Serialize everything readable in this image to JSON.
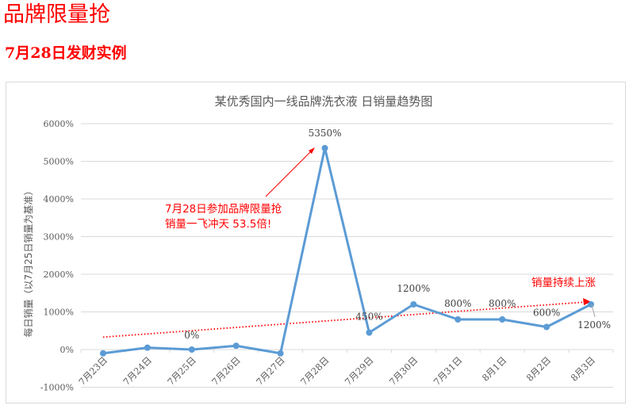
{
  "page": {
    "headline": "品牌限量抢",
    "subheadline": "7月28日发财实例"
  },
  "colors": {
    "headline": "#ff0000",
    "series_line": "#5b9bd5",
    "trend_line": "#ff0000",
    "gridline": "#d9d9d9",
    "text": "#595959"
  },
  "chart_data": {
    "type": "line",
    "title": "某优秀国内一线品牌洗衣液 日销量趋势图",
    "xlabel": "",
    "ylabel": "每日销量（以7月25日销量为基准）",
    "ylim": [
      -1000,
      6000
    ],
    "yticks": [
      -1000,
      0,
      1000,
      2000,
      3000,
      4000,
      5000,
      6000
    ],
    "ytick_labels": [
      "-1000%",
      "0%",
      "1000%",
      "2000%",
      "3000%",
      "4000%",
      "5000%",
      "6000%"
    ],
    "grid": true,
    "legend": "none",
    "categories": [
      "7月23日",
      "7月24日",
      "7月25日",
      "7月26日",
      "7月27日",
      "7月28日",
      "7月29日",
      "7月30日",
      "7月31日",
      "8月1日",
      "8月2日",
      "8月3日"
    ],
    "series": [
      {
        "name": "日销量",
        "values": [
          -100,
          50,
          0,
          100,
          -100,
          5350,
          450,
          1200,
          800,
          800,
          600,
          1200
        ]
      }
    ],
    "data_labels": [
      {
        "category": "7月25日",
        "text": "0%"
      },
      {
        "category": "7月28日",
        "text": "5350%"
      },
      {
        "category": "7月29日",
        "text": "450%"
      },
      {
        "category": "7月30日",
        "text": "1200%"
      },
      {
        "category": "7月31日",
        "text": "800%"
      },
      {
        "category": "8月1日",
        "text": "800%"
      },
      {
        "category": "8月2日",
        "text": "600%"
      },
      {
        "category": "8月3日",
        "text": "1200%"
      }
    ],
    "annotations": [
      {
        "text_line1": "7月28日参加品牌限量抢",
        "text_line2": "销量一飞冲天 53.5倍!",
        "points_to": "7月28日"
      },
      {
        "text": "销量持续上涨",
        "type": "trend-arrow"
      }
    ],
    "trendline": {
      "style": "dotted",
      "color": "#ff0000",
      "from_value": 330,
      "to_value": 1260
    }
  }
}
